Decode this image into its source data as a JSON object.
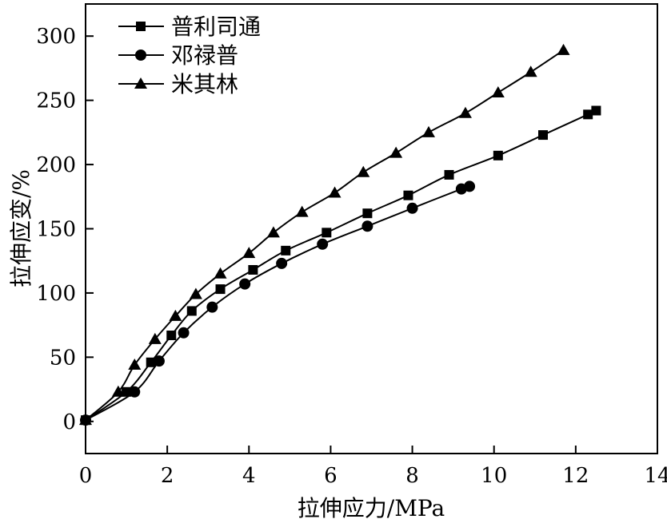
{
  "chart_data": {
    "type": "line",
    "xlabel": "拉伸应力/MPa",
    "ylabel": "拉伸应变/%",
    "xlim": [
      0,
      14
    ],
    "ylim": [
      -25,
      325
    ],
    "xticks": [
      0,
      2,
      4,
      6,
      8,
      10,
      12,
      14
    ],
    "yticks": [
      0,
      50,
      100,
      150,
      200,
      250,
      300
    ],
    "grid": false,
    "legend": "top-left",
    "series": [
      {
        "name": "普利司通",
        "marker": "square",
        "color": "#000000",
        "x": [
          0,
          1.0,
          1.6,
          2.1,
          2.6,
          3.3,
          4.1,
          4.9,
          5.9,
          6.9,
          7.9,
          8.9,
          10.1,
          11.2,
          12.3,
          12.5
        ],
        "y": [
          1,
          23,
          46,
          67,
          86,
          103,
          118,
          133,
          147,
          162,
          176,
          192,
          207,
          223,
          239,
          242
        ]
      },
      {
        "name": "邓禄普",
        "marker": "circle",
        "color": "#000000",
        "x": [
          0,
          1.2,
          1.8,
          2.4,
          3.1,
          3.9,
          4.8,
          5.8,
          6.9,
          8.0,
          9.2,
          9.4
        ],
        "y": [
          1,
          23,
          47,
          69,
          89,
          107,
          123,
          138,
          152,
          166,
          181,
          183
        ]
      },
      {
        "name": "米其林",
        "marker": "triangle",
        "color": "#000000",
        "x": [
          0,
          0.8,
          1.2,
          1.7,
          2.2,
          2.7,
          3.3,
          4.0,
          4.6,
          5.3,
          6.1,
          6.8,
          7.6,
          8.4,
          9.3,
          10.1,
          10.9,
          11.7
        ],
        "y": [
          1,
          23,
          44,
          64,
          82,
          99,
          115,
          131,
          147,
          163,
          178,
          194,
          209,
          225,
          240,
          256,
          272,
          289
        ]
      }
    ]
  }
}
